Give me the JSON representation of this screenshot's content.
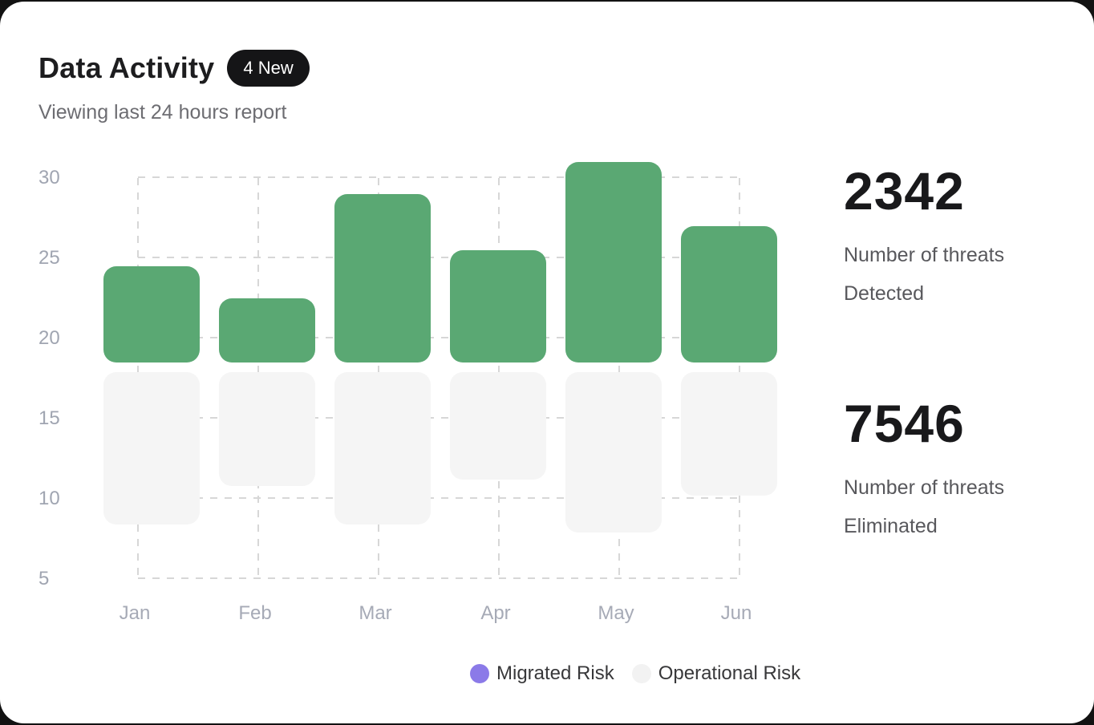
{
  "header": {
    "title": "Data Activity",
    "badge": "4 New",
    "subtitle": "Viewing last 24 hours report"
  },
  "stats": [
    {
      "value": "2342",
      "label_line1": "Number of threats",
      "label_line2": "Detected"
    },
    {
      "value": "7546",
      "label_line1": "Number of threats",
      "label_line2": "Eliminated"
    }
  ],
  "chart_data": {
    "type": "bar",
    "categories": [
      "Jan",
      "Feb",
      "Mar",
      "Apr",
      "May",
      "Jun"
    ],
    "series": [
      {
        "name": "Migrated Risk",
        "role": "upper",
        "color": "#5aa873",
        "baseline": 18.5,
        "values": [
          24.5,
          22.5,
          29,
          25.5,
          31,
          27
        ]
      },
      {
        "name": "Operational Risk",
        "role": "lower",
        "color": "#f5f5f5",
        "baseline": 17.9,
        "values": [
          8.4,
          10.8,
          8.4,
          11.2,
          7.9,
          10.2
        ]
      }
    ],
    "yticks": [
      30,
      25,
      20,
      15,
      10,
      5
    ],
    "ylim": [
      5,
      31
    ],
    "xlabel": "",
    "ylabel": "",
    "grid": "dashed",
    "grid_color": "#d7d7d7",
    "legend_position": "bottom",
    "legend": [
      {
        "label": "Migrated Risk",
        "color": "#8b7ae8"
      },
      {
        "label": "Operational Risk",
        "color": "#f2f2f2"
      }
    ]
  }
}
